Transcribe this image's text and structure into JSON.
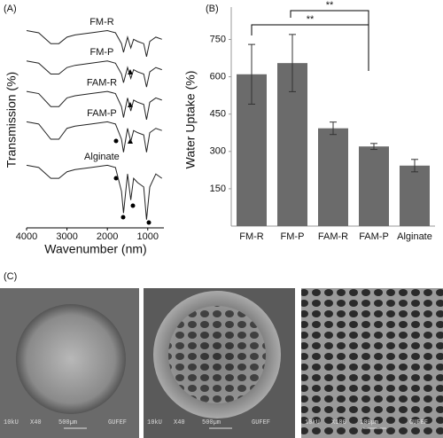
{
  "chart_data": [
    {
      "type": "line",
      "title": "(A)",
      "xlabel": "Wavenumber (nm)",
      "ylabel": "Transmission (%)",
      "x": [
        4000,
        3700,
        3400,
        3200,
        3000,
        2800,
        2400,
        2000,
        1800,
        1650,
        1600,
        1500,
        1420,
        1350,
        1250,
        1100,
        1030,
        950,
        800,
        650
      ],
      "xlim": [
        4000,
        600
      ],
      "xticks": [
        4000,
        3000,
        2000,
        1000
      ],
      "ylim": [
        0,
        100
      ],
      "series": [
        {
          "name": "FM-R",
          "color": "#222222",
          "values": [
            90,
            89,
            84,
            84,
            87,
            88,
            89,
            90,
            89,
            84,
            80,
            87,
            82,
            86,
            85,
            84,
            78,
            85,
            87,
            86
          ]
        },
        {
          "name": "FM-P",
          "color": "#222222",
          "values": [
            76,
            75,
            70,
            70,
            73,
            74,
            75,
            76,
            75,
            70,
            66,
            73,
            68,
            72,
            71,
            70,
            64,
            71,
            73,
            72
          ]
        },
        {
          "name": "FAM-R",
          "color": "#222222",
          "values": [
            62,
            61,
            55,
            55,
            59,
            60,
            61,
            62,
            61,
            55,
            50,
            59,
            53,
            58,
            57,
            56,
            49,
            57,
            59,
            58
          ]
        },
        {
          "name": "FAM-P",
          "color": "#222222",
          "values": [
            48,
            47,
            40,
            40,
            45,
            46,
            47,
            48,
            47,
            40,
            34,
            45,
            39,
            44,
            43,
            42,
            34,
            43,
            45,
            44
          ]
        },
        {
          "name": "Alginate",
          "color": "#222222",
          "values": [
            28,
            27,
            22,
            22,
            25,
            26,
            27,
            28,
            27,
            16,
            6,
            24,
            12,
            22,
            20,
            18,
            3,
            18,
            24,
            22
          ]
        }
      ]
    },
    {
      "type": "bar",
      "title": "(B)",
      "ylabel": "Water Uptake (%)",
      "categories": [
        "FM-R",
        "FM-P",
        "FAM-R",
        "FAM-P",
        "Alginate"
      ],
      "values": [
        610,
        655,
        393,
        320,
        243
      ],
      "errors": [
        120,
        115,
        25,
        12,
        25
      ],
      "color": "#6b6b6b",
      "ylim": [
        0,
        880
      ],
      "yticks": [
        150,
        300,
        450,
        600,
        750
      ],
      "annotations": [
        "**",
        "**"
      ]
    }
  ],
  "panel_c": {
    "label": "(C)",
    "images": [
      {
        "caption": [
          "10kU",
          "X40",
          "500µm",
          "GUFEF"
        ]
      },
      {
        "caption": [
          "10kU",
          "X40",
          "500µm",
          "GUFEF"
        ]
      },
      {
        "caption": [
          "10kU",
          "X100",
          "100µm",
          "GUFEF"
        ]
      }
    ]
  }
}
